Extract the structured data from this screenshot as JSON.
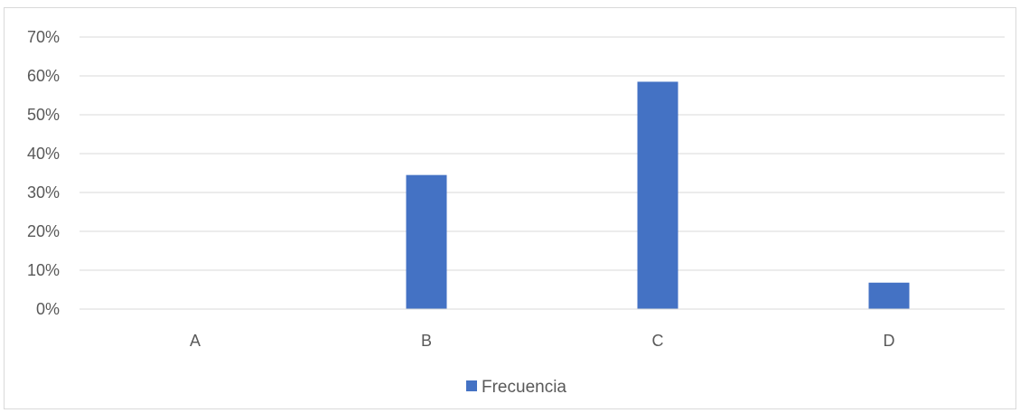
{
  "chart_data": {
    "type": "bar",
    "categories": [
      "A",
      "B",
      "C",
      "D"
    ],
    "series": [
      {
        "name": "Frecuencia",
        "values": [
          0,
          0.345,
          0.585,
          0.068
        ],
        "color": "#4472C4"
      }
    ],
    "ylim": [
      0,
      0.7
    ],
    "yticks": [
      0,
      0.1,
      0.2,
      0.3,
      0.4,
      0.5,
      0.6,
      0.7
    ],
    "ytick_labels": [
      "0%",
      "10%",
      "20%",
      "30%",
      "40%",
      "50%",
      "60%",
      "70%"
    ],
    "y_format": "percent",
    "grid": true,
    "gridline_color": "#d9d9d9",
    "legend_position": "bottom",
    "title": "",
    "xlabel": "",
    "ylabel": ""
  }
}
